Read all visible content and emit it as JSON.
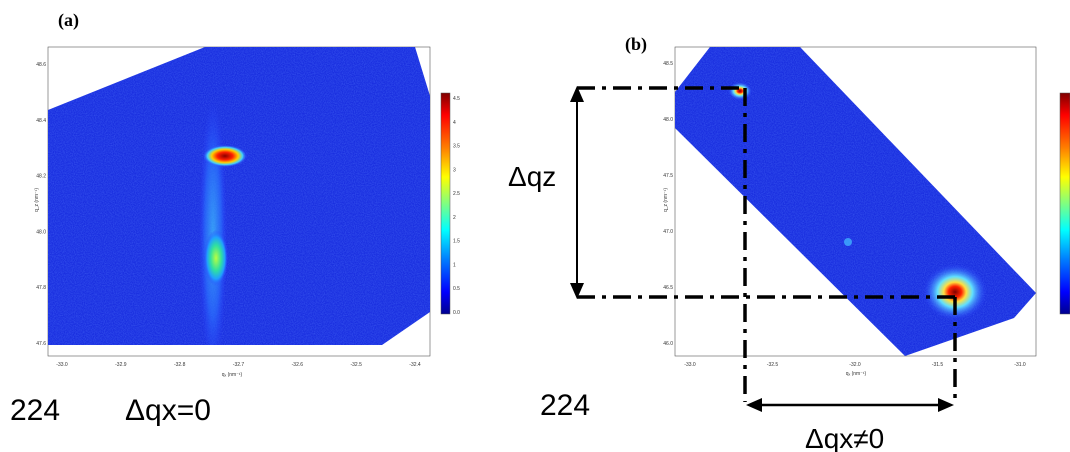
{
  "panels": [
    {
      "label": "(a)",
      "bottom_label_left": "224",
      "bottom_label_right": "Δqx=0",
      "x_axis_label": "qₓ (nm⁻¹)",
      "y_axis_label": "q_z (nm⁻¹)",
      "x_ticks": [
        "-33.0",
        "-32.9",
        "-32.8",
        "-32.7",
        "-32.6",
        "-32.5",
        "-32.4"
      ],
      "y_ticks": [
        "48.6",
        "48.4",
        "48.2",
        "48.0",
        "47.8",
        "47.6"
      ],
      "colorbar_ticks": [
        "4.5",
        "4",
        "3.5",
        "3",
        "2.5",
        "2",
        "1.5",
        "1",
        "0.5",
        "0.0"
      ]
    },
    {
      "label": "(b)",
      "bottom_label": "224",
      "dqz_label": "Δqz",
      "dqx_label": "Δqx≠0",
      "x_axis_label": "qₓ (nm⁻¹)",
      "y_axis_label": "q_z (nm⁻¹)",
      "x_ticks": [
        "-33.0",
        "-32.5",
        "-32.0",
        "-31.5",
        "-31.0"
      ],
      "y_ticks": [
        "48.5",
        "48.0",
        "47.5",
        "47.0",
        "46.5",
        "46.0"
      ]
    }
  ],
  "colors": {
    "map_blue": "#1a2fe0",
    "colorbar": [
      "#7f0000",
      "#ff0000",
      "#ff8000",
      "#ffff00",
      "#80ff80",
      "#00ffff",
      "#0080ff",
      "#0000ff",
      "#00008f"
    ]
  }
}
